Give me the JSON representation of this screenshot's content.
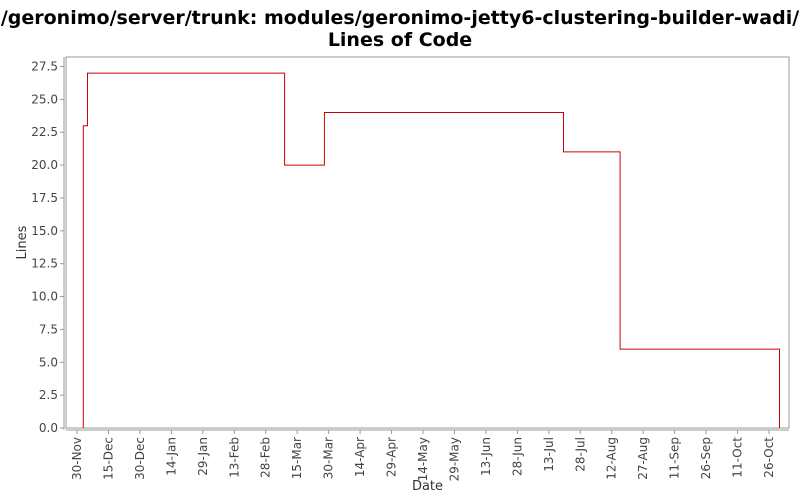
{
  "chart_data": {
    "type": "line",
    "step": true,
    "title": "/geronimo/server/trunk: modules/geronimo-jetty6-clustering-builder-wadi/",
    "subtitle": "Lines of Code",
    "xlabel": "Date",
    "ylabel": "Lines",
    "ylim": [
      0,
      28.5
    ],
    "yticks": [
      "0.0",
      "2.5",
      "5.0",
      "7.5",
      "10.0",
      "12.5",
      "15.0",
      "17.5",
      "20.0",
      "22.5",
      "25.0",
      "27.5"
    ],
    "xticks": [
      "30-Nov",
      "15-Dec",
      "30-Dec",
      "14-Jan",
      "29-Jan",
      "13-Feb",
      "28-Feb",
      "15-Mar",
      "30-Mar",
      "14-Apr",
      "29-Apr",
      "14-May",
      "29-May",
      "13-Jun",
      "28-Jun",
      "13-Jul",
      "28-Jul",
      "12-Aug",
      "27-Aug",
      "11-Sep",
      "26-Sep",
      "11-Oct",
      "26-Oct"
    ],
    "series": [
      {
        "color": "#cc0000",
        "points": [
          {
            "x": "03-Dec",
            "y": 0
          },
          {
            "x": "03-Dec",
            "y": 23
          },
          {
            "x": "05-Dec",
            "y": 23
          },
          {
            "x": "05-Dec",
            "y": 27
          },
          {
            "x": "09-Mar",
            "y": 27
          },
          {
            "x": "09-Mar",
            "y": 20
          },
          {
            "x": "28-Mar",
            "y": 20
          },
          {
            "x": "28-Mar",
            "y": 24
          },
          {
            "x": "20-Jul",
            "y": 24
          },
          {
            "x": "20-Jul",
            "y": 21
          },
          {
            "x": "16-Aug",
            "y": 21
          },
          {
            "x": "16-Aug",
            "y": 6
          },
          {
            "x": "31-Oct",
            "y": 6
          },
          {
            "x": "31-Oct",
            "y": 0
          }
        ]
      }
    ],
    "grid": false,
    "colors": {
      "plot_border": "#999999",
      "background": "#ffffff"
    }
  }
}
